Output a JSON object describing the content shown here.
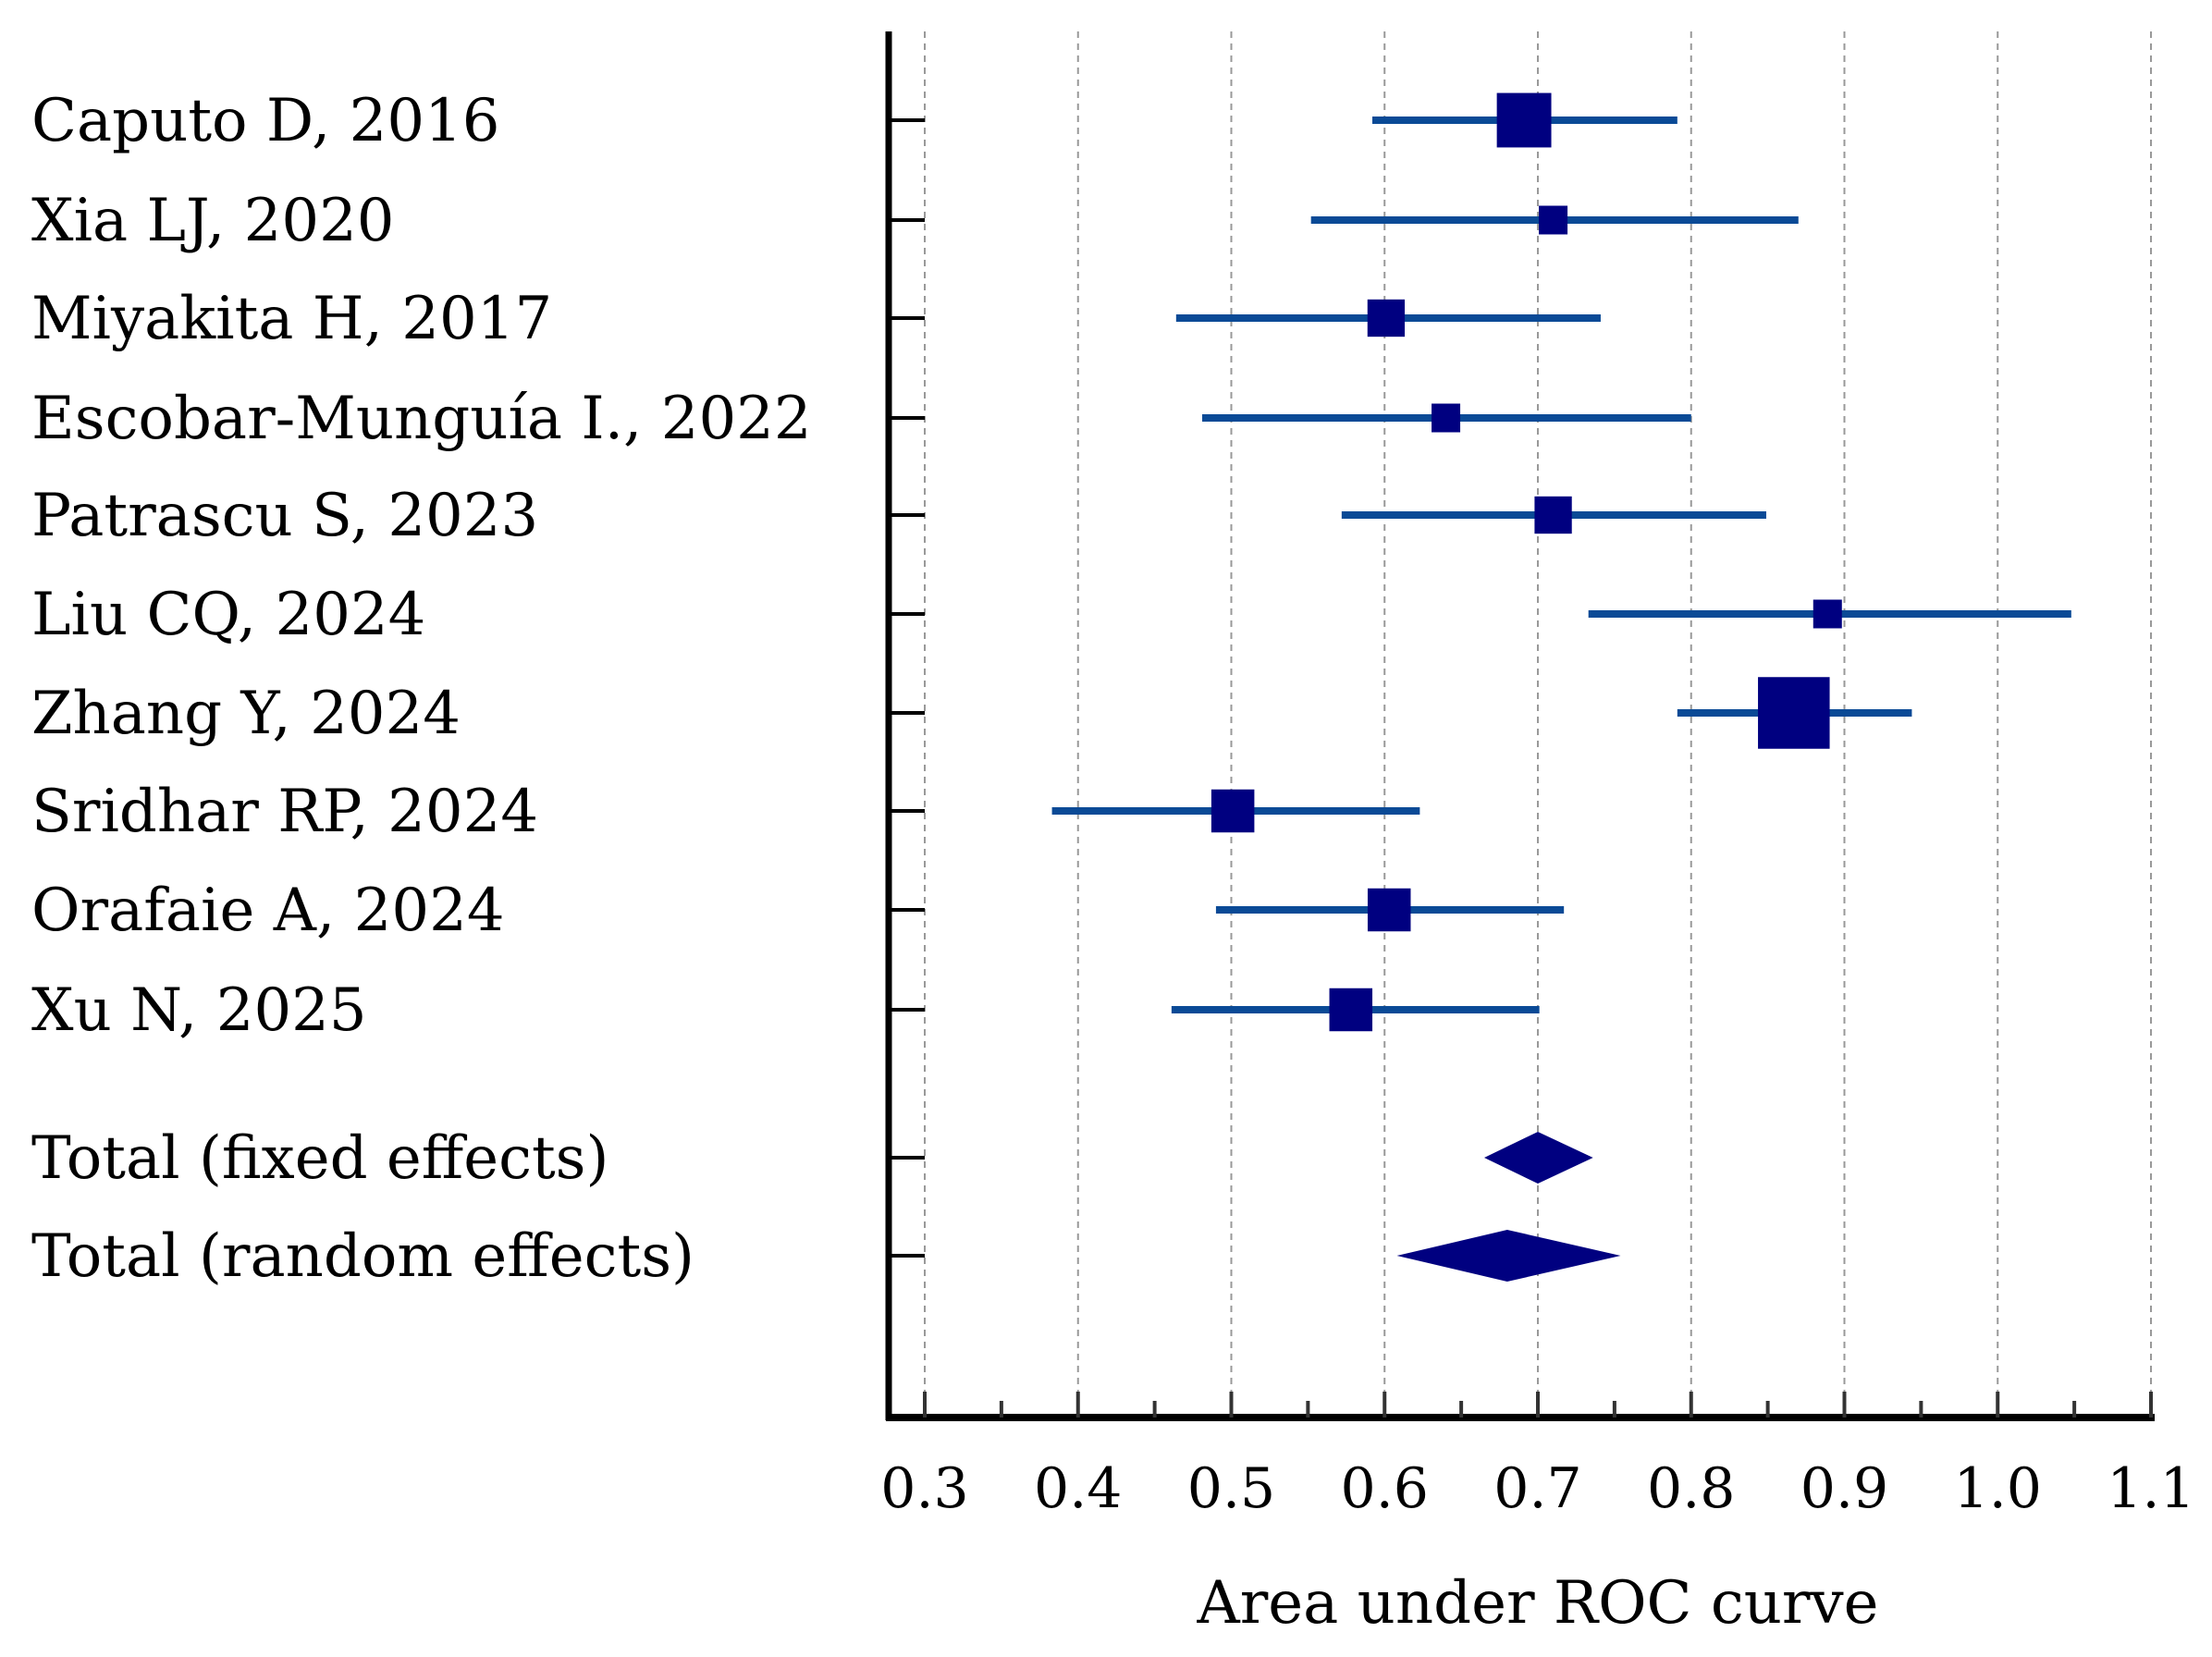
{
  "chart_data": {
    "type": "forest",
    "title": "",
    "xlabel": "Area under ROC curve",
    "xlim": [
      0.3,
      1.1
    ],
    "xticks": [
      "0.3",
      "0.4",
      "0.5",
      "0.6",
      "0.7",
      "0.8",
      "0.9",
      "1.0",
      "1.1"
    ],
    "grid": "vertical dashed",
    "studies": [
      {
        "label": "Caputo D, 2016",
        "auc": 0.691,
        "ci": [
          0.592,
          0.791
        ],
        "weight": 1.9
      },
      {
        "label": "Xia LJ, 2020",
        "auc": 0.71,
        "ci": [
          0.552,
          0.87
        ],
        "weight": 1.0
      },
      {
        "label": "Miyakita H, 2017",
        "auc": 0.601,
        "ci": [
          0.464,
          0.741
        ],
        "weight": 1.3
      },
      {
        "label": "Escobar-Munguía I., 2022",
        "auc": 0.64,
        "ci": [
          0.481,
          0.8
        ],
        "weight": 1.0
      },
      {
        "label": "Patrascu S, 2023",
        "auc": 0.71,
        "ci": [
          0.572,
          0.849
        ],
        "weight": 1.3
      },
      {
        "label": "Liu CQ, 2024",
        "auc": 0.889,
        "ci": [
          0.733,
          1.048
        ],
        "weight": 1.0
      },
      {
        "label": "Zhang Y, 2024",
        "auc": 0.867,
        "ci": [
          0.791,
          0.944
        ],
        "weight": 2.5
      },
      {
        "label": "Sridhar RP, 2024",
        "auc": 0.501,
        "ci": [
          0.383,
          0.623
        ],
        "weight": 1.5
      },
      {
        "label": "Orafaie A, 2024",
        "auc": 0.603,
        "ci": [
          0.49,
          0.717
        ],
        "weight": 1.5
      },
      {
        "label": "Xu N, 2025",
        "auc": 0.578,
        "ci": [
          0.461,
          0.701
        ],
        "weight": 1.5
      }
    ],
    "pooled": [
      {
        "label": "Total (fixed effects)",
        "auc": 0.7,
        "ci": [
          0.665,
          0.736
        ]
      },
      {
        "label": "Total (random effects)",
        "auc": 0.68,
        "ci": [
          0.608,
          0.754
        ]
      }
    ],
    "colors": {
      "ci_line": "#0a4a96",
      "marker": "#000080"
    }
  }
}
